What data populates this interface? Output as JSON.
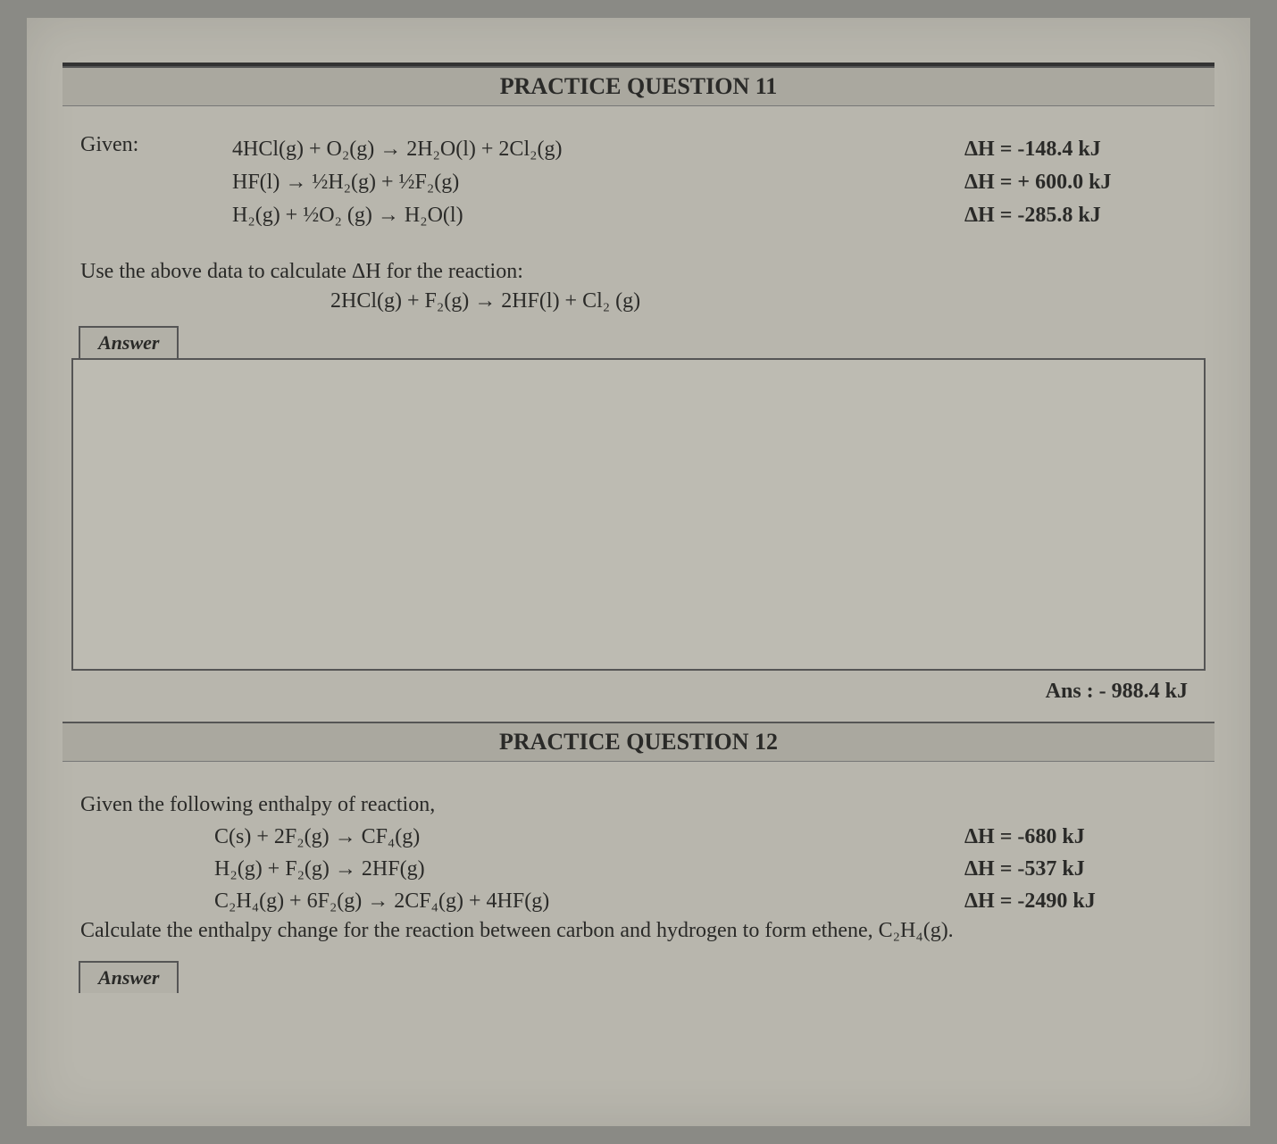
{
  "q11": {
    "title": "PRACTICE QUESTION 11",
    "given_label": "Given:",
    "eqn1": "4HCl(g) + O₂(g) → 2H₂O(l) + 2Cl₂(g)",
    "eqn2": "HF(l) → ½H₂(g) + ½F₂(g)",
    "eqn3": "H₂(g) + ½O₂ (g) → H₂O(l)",
    "dh1": "ΔH = -148.4 kJ",
    "dh2": "ΔH = + 600.0 kJ",
    "dh3": "ΔH = -285.8 kJ",
    "instr": "Use the above data to calculate ΔH for the reaction:",
    "target": "2HCl(g) + F₂(g) → 2HF(l) + Cl₂ (g)",
    "answer_tab": "Answer",
    "ans": "Ans : - 988.4 kJ"
  },
  "q12": {
    "title": "PRACTICE QUESTION 12",
    "intro": "Given the following enthalpy of reaction,",
    "eqn1": "C(s)   +   2F₂(g)   →   CF₄(g)",
    "eqn2": "H₂(g)   +   F₂(g)   →   2HF(g)",
    "eqn3": "C₂H₄(g)   +   6F₂(g)   →   2CF₄(g)   +   4HF(g)",
    "dh1": "ΔH = -680 kJ",
    "dh2": "ΔH = -537 kJ",
    "dh3": "ΔH = -2490 kJ",
    "calc": "Calculate the enthalpy change for the reaction between carbon and hydrogen to form ethene, C₂H₄(g).",
    "answer_tab": "Answer"
  },
  "style": {
    "page_bg": "#b8b6ad",
    "text_color": "#2a2a28",
    "title_fontsize": 26,
    "body_fontsize": 24,
    "box_border": "#555555"
  }
}
